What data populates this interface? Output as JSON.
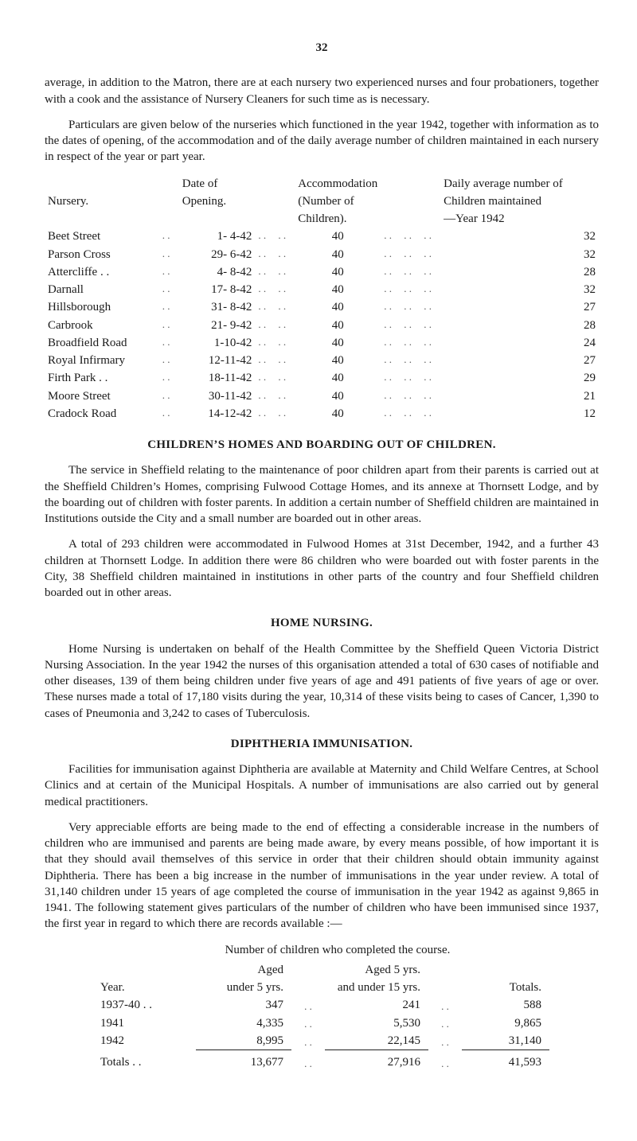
{
  "pageNumber": "32",
  "intro": {
    "p1": "average, in addition to the Matron, there are at each nursery two experienced nurses and four probationers, together with a cook and the assistance of Nursery Cleaners for such time as is necessary.",
    "p2": "Particulars are given below of the nurseries which functioned in the year 1942, together with information as to the dates of opening, of the accommodation and of the daily average number of children maintained in each nursery in respect of the year or part year."
  },
  "nurseryTable": {
    "headers": {
      "nursery": "Nursery.",
      "date1": "Date of",
      "date2": "Opening.",
      "accom1": "Accommodation",
      "accom2": "(Number of",
      "accom3": "Children).",
      "daily1": "Daily average number of",
      "daily2": "Children maintained",
      "daily3": "—Year 1942"
    },
    "rows": [
      {
        "name": "Beet Street",
        "date": "1- 4-42",
        "accom": "40",
        "daily": "32"
      },
      {
        "name": "Parson Cross",
        "date": "29- 6-42",
        "accom": "40",
        "daily": "32"
      },
      {
        "name": "Attercliffe  . .",
        "date": "4- 8-42",
        "accom": "40",
        "daily": "28"
      },
      {
        "name": "Darnall",
        "date": "17- 8-42",
        "accom": "40",
        "daily": "32"
      },
      {
        "name": "Hillsborough",
        "date": "31- 8-42",
        "accom": "40",
        "daily": "27"
      },
      {
        "name": "Carbrook",
        "date": "21- 9-42",
        "accom": "40",
        "daily": "28"
      },
      {
        "name": "Broadfield Road",
        "date": "1-10-42",
        "accom": "40",
        "daily": "24"
      },
      {
        "name": "Royal Infirmary",
        "date": "12-11-42",
        "accom": "40",
        "daily": "27"
      },
      {
        "name": "Firth Park  . .",
        "date": "18-11-42",
        "accom": "40",
        "daily": "29"
      },
      {
        "name": "Moore Street",
        "date": "30-11-42",
        "accom": "40",
        "daily": "21"
      },
      {
        "name": "Cradock Road",
        "date": "14-12-42",
        "accom": "40",
        "daily": "12"
      }
    ]
  },
  "sections": {
    "childrensHomes": {
      "heading": "CHILDREN’S HOMES AND BOARDING OUT OF CHILDREN.",
      "p1": "The service in Sheffield relating to the maintenance of poor children apart from their parents is carried out at the Sheffield Children’s Homes, comprising Fulwood Cottage Homes, and its annexe at Thornsett Lodge, and by the boarding out of children with foster parents.  In addition a certain number of Sheffield children are maintained in Institutions outside the City and a small number are boarded out in other areas.",
      "p2": "A total of 293 children were accommodated in Fulwood Homes at 31st December, 1942, and a further 43 children at Thornsett Lodge.  In addition there were 86 children who were boarded out with foster parents in the City, 38 Sheffield children maintained in institutions in other parts of the country and four Sheffield children boarded out in other areas."
    },
    "homeNursing": {
      "heading": "HOME NURSING.",
      "p1": "Home Nursing is undertaken on behalf of the Health Committee by the Sheffield Queen Victoria District Nursing Association.  In the year 1942 the nurses of this organisation attended a total of 630 cases of notifiable and other diseases, 139 of them being children under five years of age and 491 patients of five years of age or over.  These nurses made a total of 17,180 visits during the year, 10,314 of these visits being to cases of Cancer, 1,390 to cases of Pneumonia and 3,242 to cases of Tuberculosis."
    },
    "diphtheria": {
      "heading": "DIPHTHERIA IMMUNISATION.",
      "p1": "Facilities for immunisation against Diphtheria are available at Maternity and Child Welfare Centres, at School Clinics and at certain of the Municipal Hospitals.  A number of immunisations are also carried out by general medical practitioners.",
      "p2": "Very appreciable efforts are being made to the end of effecting a considerable increase in the numbers of children who are immunised and parents are being made aware, by every means possible, of how important it is that they should avail themselves of this service in order that their children should obtain immunity against Diphtheria.  There has been a big increase in the number of immunisations in the year under review.  A total of 31,140 children under 15 years of age completed the course of immunisation in the year 1942 as against 9,865 in 1941.  The following statement gives particulars of the number of children who have been immunised since 1937, the first year in regard to which there are records available :—"
    }
  },
  "courseTable": {
    "caption": "Number of children who completed the course.",
    "headers": {
      "year": "Year.",
      "aged1": "Aged",
      "aged2": "under 5 yrs.",
      "aged5_1": "Aged 5 yrs.",
      "aged5_2": "and under 15 yrs.",
      "totals": "Totals."
    },
    "rows": [
      {
        "year": "1937-40  . .",
        "aged": "347",
        "aged5": "241",
        "totals": "588"
      },
      {
        "year": "1941",
        "aged": "4,335",
        "aged5": "5,530",
        "totals": "9,865"
      },
      {
        "year": "1942",
        "aged": "8,995",
        "aged5": "22,145",
        "totals": "31,140"
      }
    ],
    "total": {
      "year": "Totals   . .",
      "aged": "13,677",
      "aged5": "27,916",
      "totals": "41,593"
    }
  }
}
